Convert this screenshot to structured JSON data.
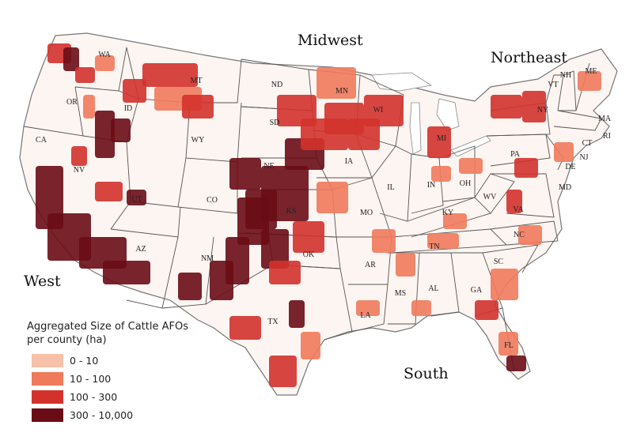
{
  "regions": {
    "west": "West",
    "midwest": "Midwest",
    "northeast": "Northeast",
    "south": "South"
  },
  "states": [
    "WA",
    "OR",
    "CA",
    "ID",
    "NV",
    "MT",
    "WY",
    "UT",
    "AZ",
    "CO",
    "NM",
    "ND",
    "SD",
    "NE",
    "KS",
    "OK",
    "TX",
    "MN",
    "IA",
    "MO",
    "AR",
    "LA",
    "WI",
    "IL",
    "MI",
    "IN",
    "OH",
    "KY",
    "TN",
    "MS",
    "AL",
    "GA",
    "FL",
    "SC",
    "NC",
    "VA",
    "WV",
    "PA",
    "NY",
    "VT",
    "NH",
    "ME",
    "MA",
    "RI",
    "CT",
    "NJ",
    "DE",
    "MD"
  ],
  "legend": {
    "title_line1": "Aggregated Size of Cattle AFOs",
    "title_line2": "per county (ha)",
    "items": [
      {
        "label": "0 - 10",
        "color": "#f7c0a8"
      },
      {
        "label": "10 - 100",
        "color": "#ef7a5c"
      },
      {
        "label": "100 - 300",
        "color": "#d3322c"
      },
      {
        "label": "300 - 10,000",
        "color": "#6a0c16"
      }
    ]
  },
  "colors": {
    "land": "#fdf5f1",
    "border": "#9a8a85",
    "water": "#ffffff"
  }
}
